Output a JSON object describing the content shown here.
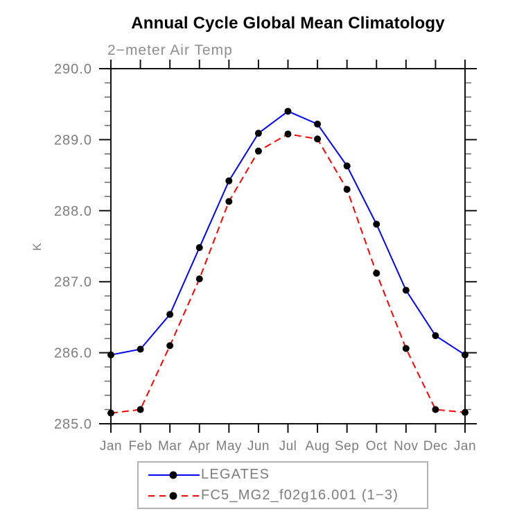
{
  "chart_data": {
    "type": "line",
    "title": "Annual Cycle Global Mean Climatology",
    "subtitle": "2−meter Air Temp",
    "ylabel": "K",
    "xlabel": "",
    "categories": [
      "Jan",
      "Feb",
      "Mar",
      "Apr",
      "May",
      "Jun",
      "Jul",
      "Aug",
      "Sep",
      "Oct",
      "Nov",
      "Dec",
      "Jan"
    ],
    "ylim": [
      285.0,
      290.0
    ],
    "ytick_labels": [
      "285.0",
      "286.0",
      "287.0",
      "288.0",
      "289.0",
      "290.0"
    ],
    "ytick_values": [
      285.0,
      286.0,
      287.0,
      288.0,
      289.0,
      290.0
    ],
    "minor_tick_interval": 0.2,
    "grid": false,
    "legend_position": "bottom",
    "axis_color": "#111111",
    "tick_label_color": "#7d7d7d",
    "marker_color": "#000000",
    "series": [
      {
        "name": "LEGATES",
        "color": "#0000ff",
        "line_style": "solid",
        "marker": "filled-circle",
        "values": [
          285.97,
          286.05,
          286.54,
          287.48,
          288.42,
          289.09,
          289.4,
          289.22,
          288.63,
          287.81,
          286.88,
          286.24,
          285.97
        ]
      },
      {
        "name": "FC5_MG2_f02g16.001 (1−3)",
        "color": "#ff0000",
        "line_style": "dashed",
        "marker": "filled-circle",
        "values": [
          285.15,
          285.2,
          286.1,
          287.04,
          288.13,
          288.84,
          289.08,
          289.01,
          288.3,
          287.12,
          286.06,
          285.2,
          285.16
        ]
      }
    ]
  }
}
